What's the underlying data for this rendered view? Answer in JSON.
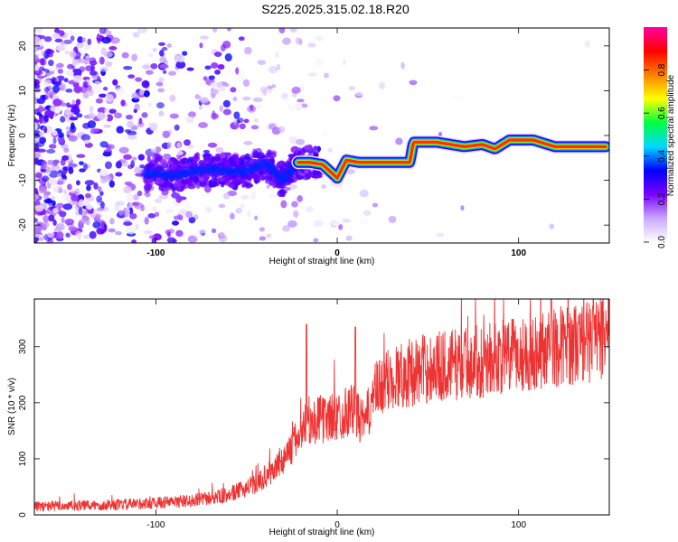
{
  "figure": {
    "title": "S225.2025.315.02.18.R20"
  },
  "chart_data": [
    {
      "type": "heatmap",
      "name": "spectrogram",
      "xlabel": "Height of straight line (km)",
      "ylabel": "Frequency (Hz)",
      "xlim": [
        -167,
        150
      ],
      "ylim": [
        -24,
        24
      ],
      "xticks": [
        -100,
        0,
        100
      ],
      "yticks": [
        -20,
        -10,
        0,
        10,
        20
      ],
      "colorbar": {
        "label": "Normalized spectral amplitude",
        "range": [
          0,
          1
        ],
        "ticks": [
          0.0,
          0.2,
          0.4,
          0.6,
          0.8
        ],
        "tick_labels": [
          "0.0",
          "0.2",
          "0.4",
          "0.6",
          "0.8"
        ],
        "colormap": [
          "#ffffff",
          "#c9a8ff",
          "#7a00ff",
          "#0000ff",
          "#00d8ff",
          "#00ff40",
          "#ffff00",
          "#ff8000",
          "#ff0000",
          "#ff00a0"
        ]
      },
      "ridge": [
        {
          "x": -100,
          "y": -8.5
        },
        {
          "x": -90,
          "y": -9
        },
        {
          "x": -80,
          "y": -8
        },
        {
          "x": -70,
          "y": -7.5
        },
        {
          "x": -60,
          "y": -8
        },
        {
          "x": -50,
          "y": -8
        },
        {
          "x": -40,
          "y": -6
        },
        {
          "x": -30,
          "y": -10
        },
        {
          "x": -22,
          "y": -6
        },
        {
          "x": -15,
          "y": -6
        },
        {
          "x": -8,
          "y": -6.5
        },
        {
          "x": 0,
          "y": -9.5
        },
        {
          "x": 5,
          "y": -5.5
        },
        {
          "x": 12,
          "y": -6
        },
        {
          "x": 25,
          "y": -6
        },
        {
          "x": 40,
          "y": -6
        },
        {
          "x": 42,
          "y": -1.5
        },
        {
          "x": 55,
          "y": -1.5
        },
        {
          "x": 70,
          "y": -2.5
        },
        {
          "x": 80,
          "y": -2
        },
        {
          "x": 87,
          "y": -3
        },
        {
          "x": 95,
          "y": -1
        },
        {
          "x": 108,
          "y": -1
        },
        {
          "x": 120,
          "y": -2.5
        },
        {
          "x": 148,
          "y": -2.5
        }
      ]
    },
    {
      "type": "line",
      "name": "snr",
      "xlabel": "Height of straight line (km)",
      "ylabel": "SNR (10 * v/v)",
      "xlim": [
        -167,
        150
      ],
      "ylim": [
        0,
        385
      ],
      "xticks": [
        -100,
        0,
        100
      ],
      "yticks": [
        0,
        100,
        200,
        300
      ],
      "color": "#ee3333",
      "trend": [
        {
          "x": -167,
          "y": 15
        },
        {
          "x": -120,
          "y": 18
        },
        {
          "x": -80,
          "y": 25
        },
        {
          "x": -60,
          "y": 35
        },
        {
          "x": -45,
          "y": 55
        },
        {
          "x": -35,
          "y": 80
        },
        {
          "x": -25,
          "y": 120
        },
        {
          "x": -18,
          "y": 160
        },
        {
          "x": -10,
          "y": 170
        },
        {
          "x": 0,
          "y": 175
        },
        {
          "x": 8,
          "y": 190
        },
        {
          "x": 15,
          "y": 160
        },
        {
          "x": 20,
          "y": 215
        },
        {
          "x": 30,
          "y": 245
        },
        {
          "x": 50,
          "y": 262
        },
        {
          "x": 80,
          "y": 275
        },
        {
          "x": 100,
          "y": 285
        },
        {
          "x": 120,
          "y": 300
        },
        {
          "x": 150,
          "y": 315
        }
      ],
      "spikes": [
        {
          "x": -17,
          "y": 340
        },
        {
          "x": 10,
          "y": 335
        },
        {
          "x": 118,
          "y": 385
        },
        {
          "x": 146,
          "y": 380
        }
      ]
    }
  ]
}
